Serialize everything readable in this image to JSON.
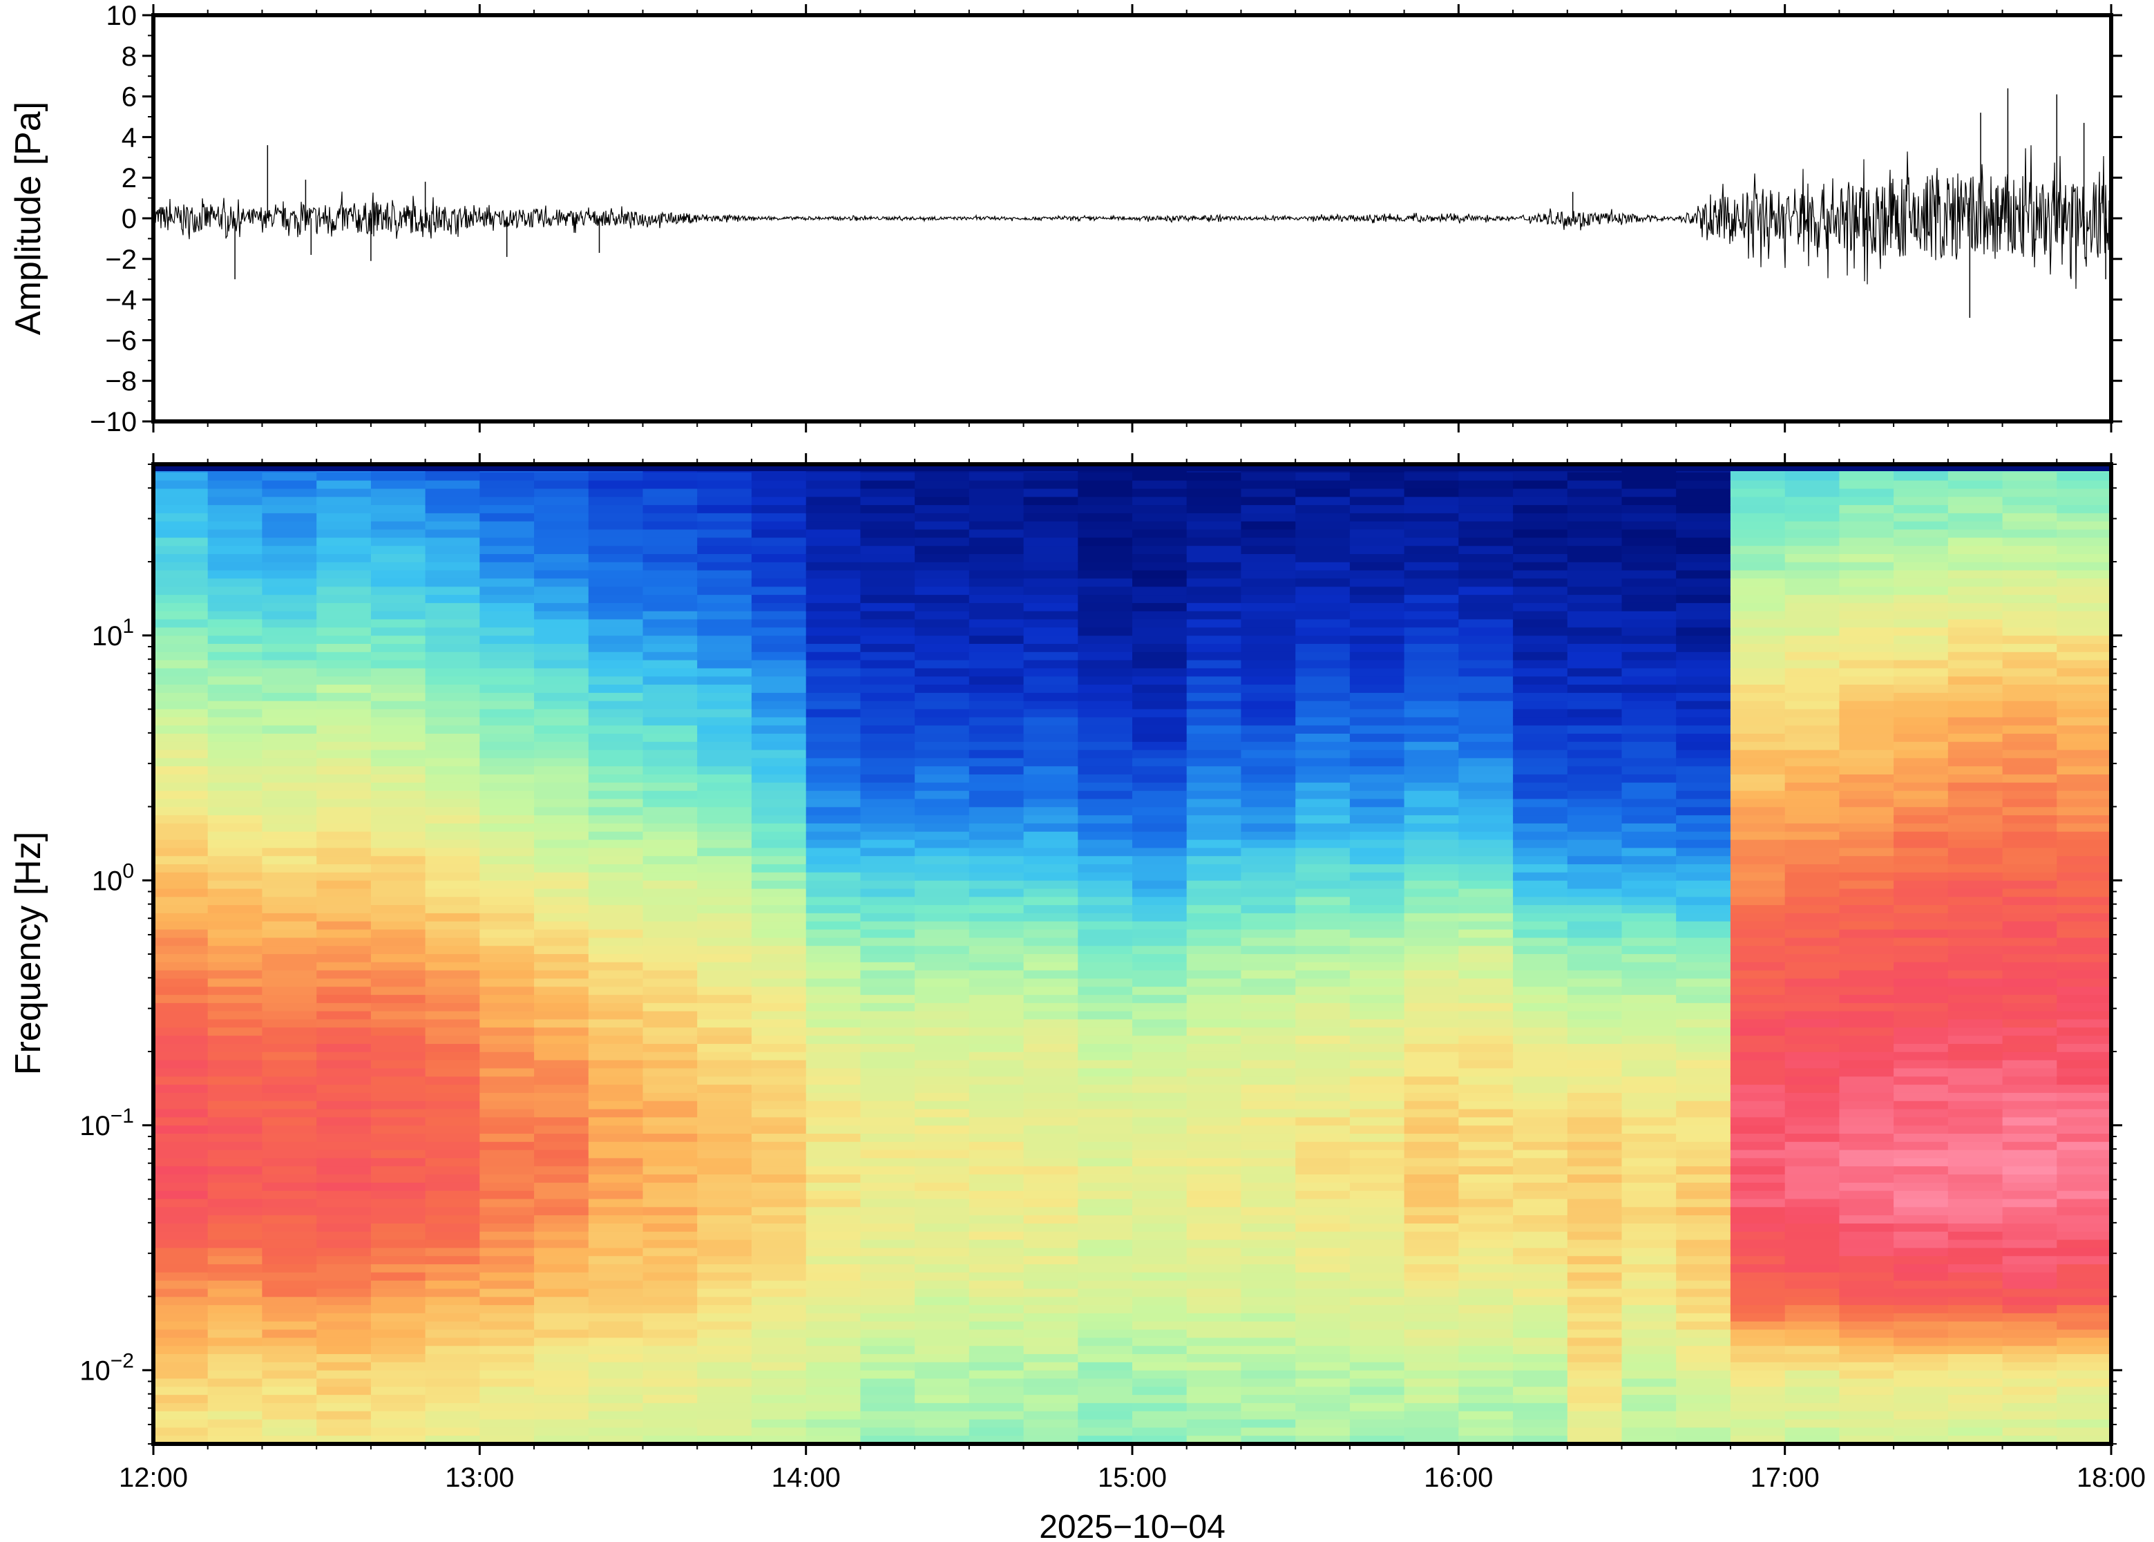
{
  "chart_data": [
    {
      "type": "line",
      "panel": "waveform",
      "ylabel": "Amplitude [Pa]",
      "ylim": [
        -10,
        10
      ],
      "yticks": [
        "10",
        "8",
        "6",
        "4",
        "2",
        "0",
        "−2",
        "−4",
        "−6",
        "−8",
        "−10"
      ],
      "ytick_values": [
        10,
        8,
        6,
        4,
        2,
        0,
        -2,
        -4,
        -6,
        -8,
        -10
      ],
      "xlim": [
        "12:00",
        "18:00"
      ],
      "grid": false,
      "envelope": {
        "x": [
          "12:00",
          "12:10",
          "12:20",
          "12:30",
          "12:40",
          "12:50",
          "13:00",
          "13:10",
          "13:20",
          "13:30",
          "13:40",
          "13:50",
          "14:00",
          "14:10",
          "14:20",
          "14:30",
          "14:40",
          "14:50",
          "15:00",
          "15:10",
          "15:20",
          "15:30",
          "15:40",
          "15:50",
          "16:00",
          "16:10",
          "16:20",
          "16:30",
          "16:40",
          "16:50",
          "17:00",
          "17:10",
          "17:20",
          "17:30",
          "17:40",
          "17:50",
          "18:00"
        ],
        "amplitude": [
          0.8,
          0.9,
          0.5,
          0.9,
          1.0,
          0.9,
          0.5,
          0.6,
          0.5,
          0.4,
          0.3,
          0.1,
          0.1,
          0.1,
          0.1,
          0.1,
          0.1,
          0.1,
          0.1,
          0.2,
          0.1,
          0.1,
          0.2,
          0.2,
          0.2,
          0.1,
          0.5,
          0.3,
          0.1,
          1.5,
          2.0,
          2.2,
          2.5,
          2.8,
          2.8,
          2.5,
          2.5
        ]
      },
      "spikes": [
        {
          "x": "12:15",
          "y": -3.0
        },
        {
          "x": "12:21",
          "y": 3.6
        },
        {
          "x": "12:28",
          "y": 1.9
        },
        {
          "x": "12:29",
          "y": -1.8
        },
        {
          "x": "12:40",
          "y": -2.1
        },
        {
          "x": "12:50",
          "y": 1.8
        },
        {
          "x": "13:05",
          "y": -1.9
        },
        {
          "x": "13:22",
          "y": -1.7
        },
        {
          "x": "16:21",
          "y": 1.3
        },
        {
          "x": "17:34",
          "y": -4.9
        },
        {
          "x": "17:36",
          "y": 5.2
        },
        {
          "x": "17:41",
          "y": 6.4
        },
        {
          "x": "17:50",
          "y": 6.1
        },
        {
          "x": "17:55",
          "y": 4.7
        },
        {
          "x": "17:59",
          "y": -3.0
        }
      ]
    },
    {
      "type": "heatmap",
      "panel": "spectrogram",
      "ylabel": "Frequency [Hz]",
      "xlabel": "2025−10−04",
      "yscale": "log",
      "ylim_hz": [
        0.005,
        50
      ],
      "yticks": [
        {
          "base": "10",
          "exp": "1",
          "value": 10
        },
        {
          "base": "10",
          "exp": "0",
          "value": 1
        },
        {
          "base": "10",
          "exp": "−1",
          "value": 0.1
        },
        {
          "base": "10",
          "exp": "−2",
          "value": 0.01
        }
      ],
      "xticks": [
        "12:00",
        "13:00",
        "14:00",
        "15:00",
        "16:00",
        "17:00",
        "18:00"
      ],
      "colormap": "rainbow (blue low power → red/pink high power)",
      "colormap_stops": [
        "#000f7a",
        "#0a2fc9",
        "#1a73e8",
        "#3cc3f0",
        "#77ebc9",
        "#c8f7a0",
        "#f6e989",
        "#fdb45a",
        "#f76e4d",
        "#f64d63",
        "#ff8fa8"
      ],
      "time_bins": [
        "12:00",
        "12:10",
        "12:20",
        "12:30",
        "12:40",
        "12:50",
        "13:00",
        "13:10",
        "13:20",
        "13:30",
        "13:40",
        "13:50",
        "14:00",
        "14:10",
        "14:20",
        "14:30",
        "14:40",
        "14:50",
        "15:00",
        "15:10",
        "15:20",
        "15:30",
        "15:40",
        "15:50",
        "16:00",
        "16:10",
        "16:20",
        "16:30",
        "16:40",
        "16:50",
        "17:00",
        "17:10",
        "17:20",
        "17:30",
        "17:40",
        "17:50"
      ],
      "freq_bands_hz": [
        50,
        20,
        10,
        5,
        2,
        1,
        0.5,
        0.2,
        0.1,
        0.05,
        0.02,
        0.01,
        0.005
      ],
      "power_level_0_to_1": [
        [
          0.25,
          0.35,
          0.42,
          0.5,
          0.6,
          0.67,
          0.75,
          0.85,
          0.87,
          0.88,
          0.75,
          0.65,
          0.6
        ],
        [
          0.22,
          0.3,
          0.4,
          0.48,
          0.57,
          0.65,
          0.72,
          0.83,
          0.85,
          0.86,
          0.73,
          0.63,
          0.58
        ],
        [
          0.2,
          0.28,
          0.38,
          0.47,
          0.56,
          0.64,
          0.72,
          0.82,
          0.84,
          0.85,
          0.76,
          0.64,
          0.58
        ],
        [
          0.22,
          0.32,
          0.4,
          0.5,
          0.58,
          0.66,
          0.73,
          0.84,
          0.86,
          0.86,
          0.76,
          0.65,
          0.6
        ],
        [
          0.2,
          0.3,
          0.38,
          0.48,
          0.56,
          0.65,
          0.72,
          0.82,
          0.84,
          0.85,
          0.74,
          0.63,
          0.57
        ],
        [
          0.18,
          0.27,
          0.36,
          0.45,
          0.54,
          0.62,
          0.7,
          0.8,
          0.83,
          0.84,
          0.72,
          0.62,
          0.56
        ],
        [
          0.15,
          0.22,
          0.32,
          0.42,
          0.5,
          0.58,
          0.66,
          0.74,
          0.78,
          0.78,
          0.7,
          0.6,
          0.55
        ],
        [
          0.15,
          0.22,
          0.3,
          0.4,
          0.48,
          0.56,
          0.64,
          0.72,
          0.78,
          0.77,
          0.67,
          0.59,
          0.54
        ],
        [
          0.12,
          0.18,
          0.26,
          0.36,
          0.45,
          0.53,
          0.61,
          0.68,
          0.72,
          0.71,
          0.66,
          0.58,
          0.53
        ],
        [
          0.12,
          0.17,
          0.25,
          0.34,
          0.43,
          0.52,
          0.6,
          0.66,
          0.7,
          0.7,
          0.66,
          0.58,
          0.53
        ],
        [
          0.1,
          0.15,
          0.22,
          0.31,
          0.4,
          0.49,
          0.58,
          0.64,
          0.68,
          0.68,
          0.62,
          0.56,
          0.52
        ],
        [
          0.08,
          0.12,
          0.18,
          0.26,
          0.35,
          0.45,
          0.55,
          0.62,
          0.66,
          0.66,
          0.6,
          0.55,
          0.5
        ],
        [
          0.05,
          0.07,
          0.1,
          0.14,
          0.22,
          0.35,
          0.47,
          0.56,
          0.6,
          0.6,
          0.57,
          0.53,
          0.48
        ],
        [
          0.03,
          0.05,
          0.08,
          0.12,
          0.2,
          0.33,
          0.45,
          0.55,
          0.58,
          0.58,
          0.55,
          0.48,
          0.45
        ],
        [
          0.02,
          0.05,
          0.08,
          0.13,
          0.22,
          0.34,
          0.46,
          0.55,
          0.58,
          0.58,
          0.53,
          0.49,
          0.45
        ],
        [
          0.02,
          0.04,
          0.07,
          0.11,
          0.2,
          0.33,
          0.45,
          0.54,
          0.58,
          0.58,
          0.55,
          0.47,
          0.44
        ],
        [
          0.02,
          0.05,
          0.08,
          0.13,
          0.22,
          0.34,
          0.46,
          0.55,
          0.57,
          0.59,
          0.54,
          0.48,
          0.45
        ],
        [
          0.01,
          0.03,
          0.05,
          0.1,
          0.18,
          0.3,
          0.42,
          0.52,
          0.55,
          0.55,
          0.52,
          0.46,
          0.43
        ],
        [
          0.01,
          0.02,
          0.04,
          0.08,
          0.17,
          0.28,
          0.42,
          0.52,
          0.56,
          0.56,
          0.52,
          0.47,
          0.42
        ],
        [
          0.02,
          0.05,
          0.09,
          0.15,
          0.24,
          0.35,
          0.46,
          0.55,
          0.58,
          0.59,
          0.54,
          0.49,
          0.46
        ],
        [
          0.02,
          0.04,
          0.08,
          0.13,
          0.22,
          0.34,
          0.46,
          0.55,
          0.58,
          0.58,
          0.53,
          0.48,
          0.45
        ],
        [
          0.02,
          0.06,
          0.1,
          0.17,
          0.27,
          0.38,
          0.48,
          0.57,
          0.6,
          0.61,
          0.55,
          0.5,
          0.46
        ],
        [
          0.02,
          0.05,
          0.09,
          0.15,
          0.24,
          0.36,
          0.48,
          0.57,
          0.6,
          0.6,
          0.54,
          0.49,
          0.45
        ],
        [
          0.02,
          0.06,
          0.11,
          0.18,
          0.28,
          0.4,
          0.52,
          0.6,
          0.64,
          0.65,
          0.58,
          0.51,
          0.47
        ],
        [
          0.02,
          0.05,
          0.1,
          0.17,
          0.27,
          0.4,
          0.52,
          0.6,
          0.63,
          0.63,
          0.56,
          0.5,
          0.46
        ],
        [
          0.01,
          0.03,
          0.06,
          0.1,
          0.18,
          0.3,
          0.45,
          0.56,
          0.62,
          0.63,
          0.57,
          0.5,
          0.46
        ],
        [
          0.01,
          0.03,
          0.06,
          0.1,
          0.17,
          0.28,
          0.44,
          0.56,
          0.63,
          0.66,
          0.63,
          0.62,
          0.55
        ],
        [
          0.01,
          0.03,
          0.06,
          0.11,
          0.18,
          0.29,
          0.44,
          0.56,
          0.62,
          0.63,
          0.58,
          0.51,
          0.47
        ],
        [
          0.01,
          0.02,
          0.05,
          0.09,
          0.16,
          0.27,
          0.42,
          0.56,
          0.62,
          0.66,
          0.64,
          0.55,
          0.5
        ],
        [
          0.35,
          0.45,
          0.55,
          0.63,
          0.7,
          0.77,
          0.83,
          0.88,
          0.92,
          0.93,
          0.83,
          0.59,
          0.52
        ],
        [
          0.36,
          0.46,
          0.56,
          0.64,
          0.71,
          0.78,
          0.84,
          0.89,
          0.93,
          0.94,
          0.84,
          0.58,
          0.51
        ],
        [
          0.38,
          0.48,
          0.58,
          0.66,
          0.73,
          0.8,
          0.85,
          0.9,
          0.95,
          0.96,
          0.85,
          0.6,
          0.53
        ],
        [
          0.38,
          0.48,
          0.59,
          0.68,
          0.75,
          0.82,
          0.86,
          0.91,
          0.96,
          0.97,
          0.86,
          0.6,
          0.53
        ],
        [
          0.4,
          0.5,
          0.6,
          0.7,
          0.77,
          0.83,
          0.86,
          0.91,
          0.96,
          0.98,
          0.86,
          0.59,
          0.52
        ],
        [
          0.4,
          0.5,
          0.6,
          0.7,
          0.77,
          0.83,
          0.87,
          0.91,
          0.97,
          0.98,
          0.87,
          0.6,
          0.53
        ],
        [
          0.4,
          0.5,
          0.6,
          0.7,
          0.76,
          0.82,
          0.86,
          0.91,
          0.96,
          0.97,
          0.86,
          0.59,
          0.52
        ]
      ]
    }
  ]
}
